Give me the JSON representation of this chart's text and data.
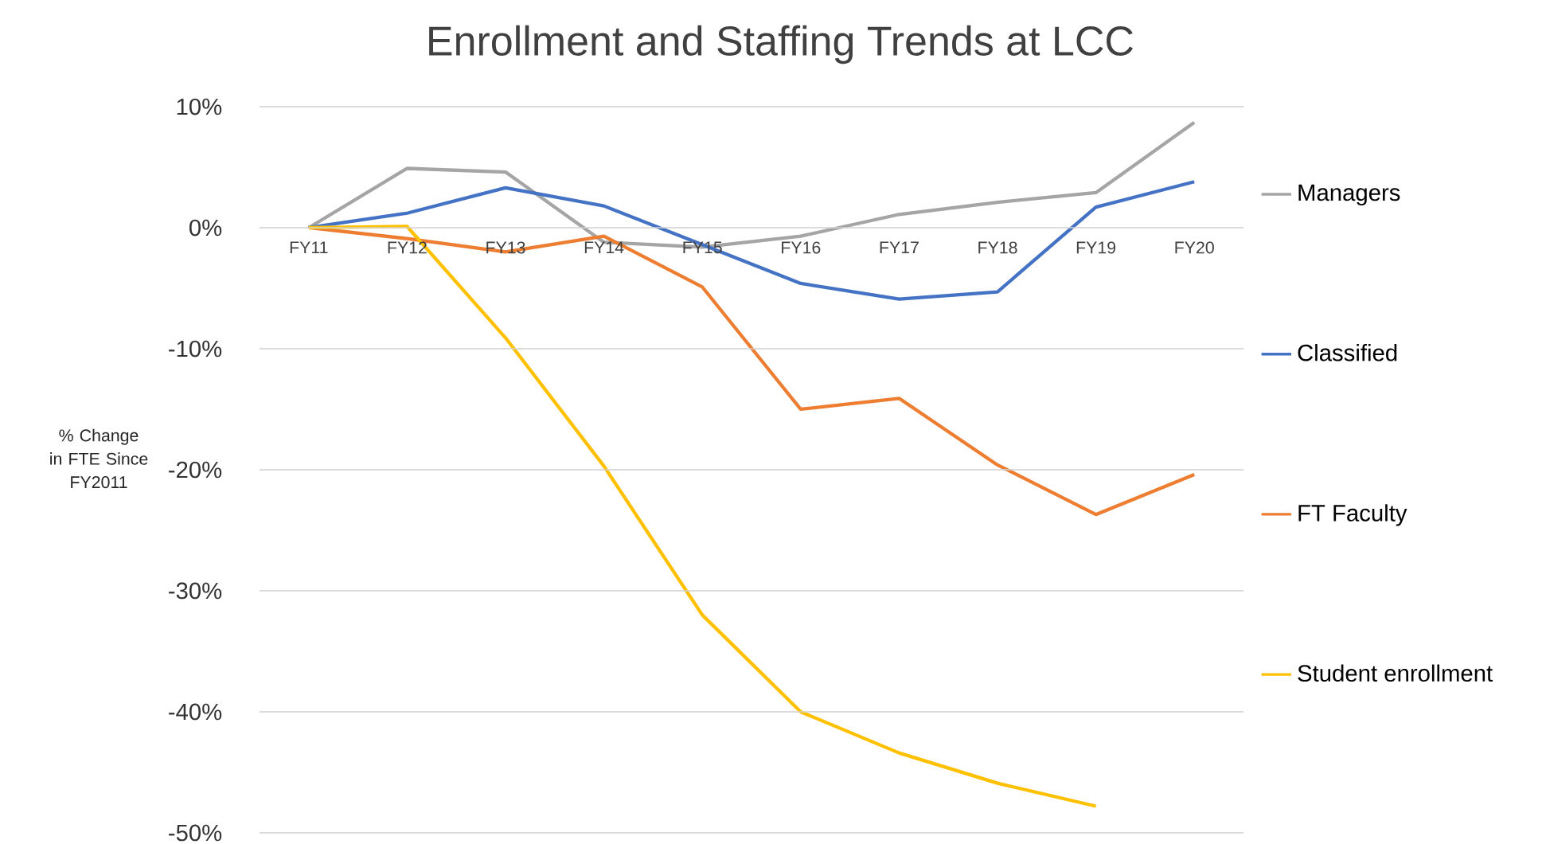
{
  "chart_data": {
    "type": "line",
    "title": "Enrollment and Staffing Trends at LCC",
    "ylabel": "% Change in FTE Since FY2011",
    "categories": [
      "FY11",
      "FY12",
      "FY13",
      "FY14",
      "FY15",
      "FY16",
      "FY17",
      "FY18",
      "FY19",
      "FY20"
    ],
    "series": [
      {
        "name": "Managers",
        "color": "#a5a5a5",
        "values": [
          0,
          4.9,
          4.6,
          -1.2,
          -1.6,
          -0.7,
          1.1,
          2.1,
          2.9,
          8.7
        ]
      },
      {
        "name": "Classified",
        "color": "#4472c4",
        "values": [
          0,
          1.2,
          3.3,
          1.8,
          -1.4,
          -4.6,
          -5.9,
          -5.3,
          1.7,
          3.8
        ]
      },
      {
        "name": "FT Faculty",
        "color": "#ed7d31",
        "values": [
          0,
          -0.9,
          -2.0,
          -0.7,
          -4.9,
          -15.0,
          -14.1,
          -19.6,
          -23.7,
          -20.4
        ]
      },
      {
        "name": "Student enrollment",
        "color": "#ffc000",
        "values": [
          0,
          0.1,
          -9.1,
          -19.7,
          -32.0,
          -40.0,
          -43.4,
          -45.9,
          -47.8,
          null
        ]
      }
    ],
    "ylim": [
      -50,
      10
    ],
    "yticks": [
      {
        "value": 10,
        "label": "10%"
      },
      {
        "value": 0,
        "label": "0%"
      },
      {
        "value": -10,
        "label": "-10%"
      },
      {
        "value": -20,
        "label": "-20%"
      },
      {
        "value": -30,
        "label": "-30%"
      },
      {
        "value": -40,
        "label": "-40%"
      },
      {
        "value": -50,
        "label": "-50%"
      }
    ],
    "grid": "y",
    "legend": "right",
    "marker": "none",
    "line_style": "solid"
  }
}
